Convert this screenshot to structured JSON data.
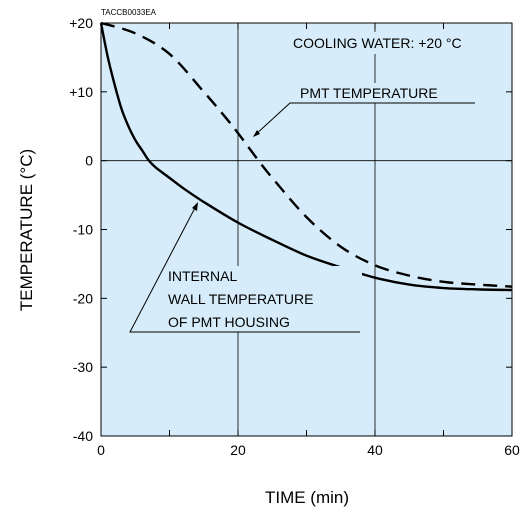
{
  "chart_data": {
    "type": "line",
    "code": "TACCB0033EA",
    "xlabel": "TIME (min)",
    "ylabel": "TEMPERATURE (°C)",
    "xlim": [
      0,
      60
    ],
    "ylim": [
      -40,
      20
    ],
    "x_ticks": [
      0,
      20,
      40,
      60
    ],
    "y_ticks": [
      {
        "value": 20,
        "label": "+20"
      },
      {
        "value": 10,
        "label": "+10"
      },
      {
        "value": 0,
        "label": "0"
      },
      {
        "value": -10,
        "label": "-10"
      },
      {
        "value": -20,
        "label": "-20"
      },
      {
        "value": -30,
        "label": "-30"
      },
      {
        "value": -40,
        "label": "-40"
      }
    ],
    "grid": true,
    "colors": {
      "plot_background": "#d6ecfa",
      "line": "#000000"
    },
    "series": [
      {
        "name": "PMT TEMPERATURE",
        "style": "dashed",
        "x": [
          0,
          5,
          10,
          15,
          18,
          20,
          23,
          25,
          30,
          35,
          40,
          45,
          50,
          55,
          60
        ],
        "y": [
          20,
          18.5,
          15.5,
          10,
          6.5,
          4,
          0,
          -2.5,
          -8.2,
          -12.5,
          -15.2,
          -16.7,
          -17.6,
          -18,
          -18.3
        ]
      },
      {
        "name": "INTERNAL WALL TEMPERATURE OF PMT HOUSING",
        "style": "solid",
        "x": [
          0,
          1,
          2,
          3,
          4,
          5,
          6,
          7,
          8,
          10,
          12,
          15,
          20,
          25,
          30,
          35,
          40,
          45,
          50,
          55,
          60
        ],
        "y": [
          20,
          15,
          11,
          7.5,
          5,
          3,
          1.5,
          0,
          -1,
          -2.5,
          -4,
          -6,
          -9,
          -11.5,
          -13.8,
          -15.5,
          -17,
          -18,
          -18.5,
          -18.7,
          -18.8
        ]
      }
    ],
    "annotations": {
      "cooling": "COOLING WATER: +20 °C",
      "pmt": "PMT TEMPERATURE",
      "wall_1": "INTERNAL",
      "wall_2": "WALL TEMPERATURE",
      "wall_3": "OF PMT HOUSING"
    }
  }
}
